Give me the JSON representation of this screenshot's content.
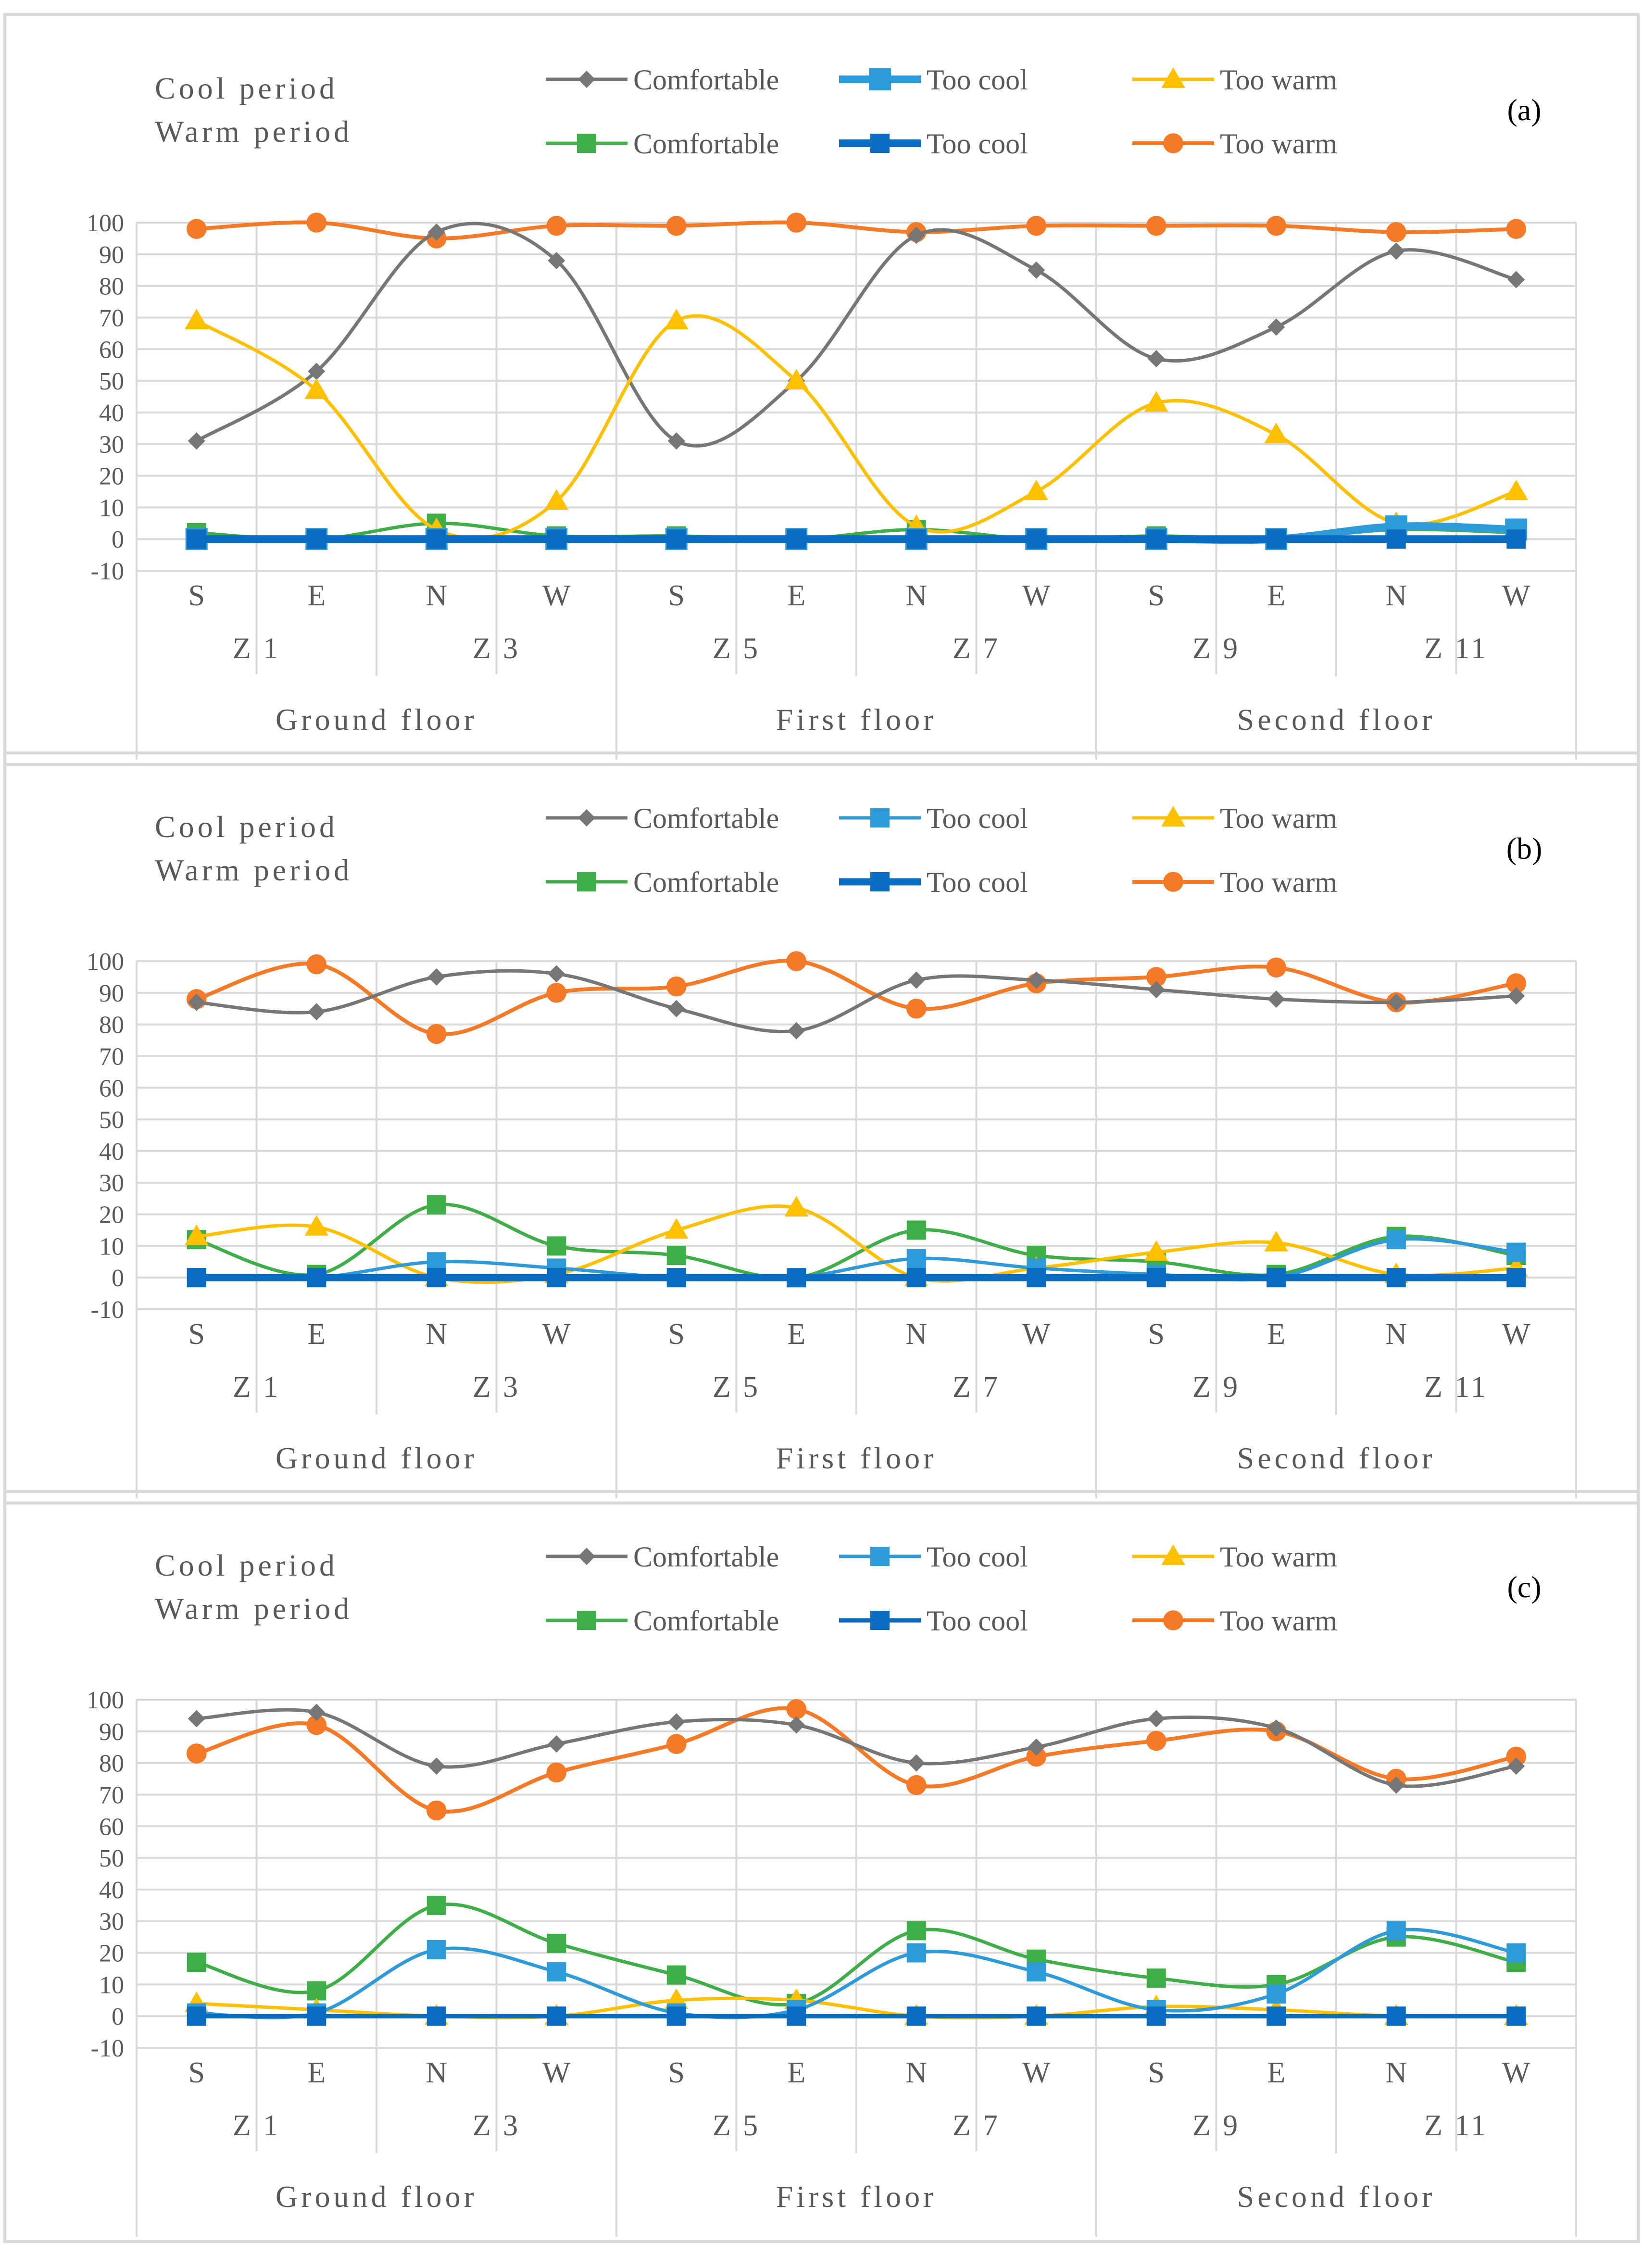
{
  "figure": {
    "categories": [
      "S",
      "E",
      "N",
      "W",
      "S",
      "E",
      "N",
      "W",
      "S",
      "E",
      "N",
      "W"
    ],
    "zones": [
      "Z 1",
      "Z 3",
      "Z 5",
      "Z 7",
      "Z 9",
      "Z 11"
    ],
    "floors": [
      "Ground floor",
      "First floor",
      "Second floor"
    ],
    "y_ticks": [
      "100",
      "90",
      "80",
      "70",
      "60",
      "50",
      "40",
      "30",
      "20",
      "10",
      "0",
      "-10"
    ],
    "period_labels": {
      "cool": "Cool period",
      "warm": "Warm period"
    },
    "legend": [
      {
        "name": "Comfortable",
        "period": "cool",
        "color": "#767676",
        "marker": "diamond"
      },
      {
        "name": "Too cool",
        "period": "cool",
        "color": "#2e9ad8",
        "marker": "square"
      },
      {
        "name": "Too warm",
        "period": "cool",
        "color": "#ffc000",
        "marker": "triangle"
      },
      {
        "name": "Comfortable",
        "period": "warm",
        "color": "#3fae49",
        "marker": "square"
      },
      {
        "name": "Too cool",
        "period": "warm",
        "color": "#0a6cc0",
        "marker": "square"
      },
      {
        "name": "Too warm",
        "period": "warm",
        "color": "#f47a28",
        "marker": "circle"
      }
    ]
  },
  "chart_data": [
    {
      "type": "line",
      "panel": "(a)",
      "categories": [
        "S",
        "E",
        "N",
        "W",
        "S",
        "E",
        "N",
        "W",
        "S",
        "E",
        "N",
        "W"
      ],
      "ylim": [
        -10,
        100
      ],
      "series": [
        {
          "name": "Comfortable (Cool period)",
          "color": "#767676",
          "values": [
            31,
            53,
            97,
            88,
            31,
            50,
            96,
            85,
            57,
            67,
            91,
            82
          ]
        },
        {
          "name": "Too cool (Cool period)",
          "color": "#2e9ad8",
          "values": [
            0,
            0,
            0,
            0,
            0,
            0,
            0,
            0,
            0,
            0,
            4,
            3
          ]
        },
        {
          "name": "Too warm (Cool period)",
          "color": "#ffc000",
          "values": [
            69,
            47,
            3,
            12,
            69,
            50,
            4,
            15,
            43,
            33,
            5,
            15
          ]
        },
        {
          "name": "Comfortable (Warm period)",
          "color": "#3fae49",
          "values": [
            2,
            0,
            5,
            1,
            1,
            0,
            3,
            0,
            1,
            0,
            3,
            2
          ]
        },
        {
          "name": "Too cool (Warm period)",
          "color": "#0a6cc0",
          "values": [
            0,
            0,
            0,
            0,
            0,
            0,
            0,
            0,
            0,
            0,
            0,
            0
          ]
        },
        {
          "name": "Too warm (Warm period)",
          "color": "#f47a28",
          "values": [
            98,
            100,
            95,
            99,
            99,
            100,
            97,
            99,
            99,
            99,
            97,
            98
          ]
        }
      ]
    },
    {
      "type": "line",
      "panel": "(b)",
      "categories": [
        "S",
        "E",
        "N",
        "W",
        "S",
        "E",
        "N",
        "W",
        "S",
        "E",
        "N",
        "W"
      ],
      "ylim": [
        -10,
        100
      ],
      "series": [
        {
          "name": "Comfortable (Cool period)",
          "color": "#767676",
          "values": [
            87,
            84,
            95,
            96,
            85,
            78,
            94,
            94,
            91,
            88,
            87,
            89
          ]
        },
        {
          "name": "Too cool (Cool period)",
          "color": "#2e9ad8",
          "values": [
            0,
            0,
            5,
            3,
            0,
            0,
            6,
            3,
            1,
            0,
            12,
            8
          ]
        },
        {
          "name": "Too warm (Cool period)",
          "color": "#ffc000",
          "values": [
            13,
            16,
            0,
            1,
            15,
            22,
            0,
            3,
            8,
            11,
            1,
            3
          ]
        },
        {
          "name": "Comfortable (Warm period)",
          "color": "#3fae49",
          "values": [
            12,
            1,
            23,
            10,
            7,
            0,
            15,
            7,
            5,
            1,
            13,
            7
          ]
        },
        {
          "name": "Too cool (Warm period)",
          "color": "#0a6cc0",
          "values": [
            0,
            0,
            0,
            0,
            0,
            0,
            0,
            0,
            0,
            0,
            0,
            0
          ]
        },
        {
          "name": "Too warm (Warm period)",
          "color": "#f47a28",
          "values": [
            88,
            99,
            77,
            90,
            92,
            100,
            85,
            93,
            95,
            98,
            87,
            93
          ]
        }
      ]
    },
    {
      "type": "line",
      "panel": "(c)",
      "categories": [
        "S",
        "E",
        "N",
        "W",
        "S",
        "E",
        "N",
        "W",
        "S",
        "E",
        "N",
        "W"
      ],
      "ylim": [
        -10,
        100
      ],
      "series": [
        {
          "name": "Comfortable (Cool period)",
          "color": "#767676",
          "values": [
            94,
            96,
            79,
            86,
            93,
            92,
            80,
            85,
            94,
            91,
            73,
            79
          ]
        },
        {
          "name": "Too cool (Cool period)",
          "color": "#2e9ad8",
          "values": [
            1,
            1,
            21,
            14,
            1,
            2,
            20,
            14,
            2,
            7,
            27,
            20
          ]
        },
        {
          "name": "Too warm (Cool period)",
          "color": "#ffc000",
          "values": [
            4,
            2,
            0,
            0,
            5,
            5,
            0,
            0,
            3,
            2,
            0,
            0
          ]
        },
        {
          "name": "Comfortable (Warm period)",
          "color": "#3fae49",
          "values": [
            17,
            8,
            35,
            23,
            13,
            4,
            27,
            18,
            12,
            10,
            25,
            17
          ]
        },
        {
          "name": "Too cool (Warm period)",
          "color": "#0a6cc0",
          "values": [
            0,
            0,
            0,
            0,
            0,
            0,
            0,
            0,
            0,
            0,
            0,
            0
          ]
        },
        {
          "name": "Too warm (Warm period)",
          "color": "#f47a28",
          "values": [
            83,
            92,
            65,
            77,
            86,
            97,
            73,
            82,
            87,
            90,
            75,
            82
          ]
        }
      ]
    }
  ]
}
